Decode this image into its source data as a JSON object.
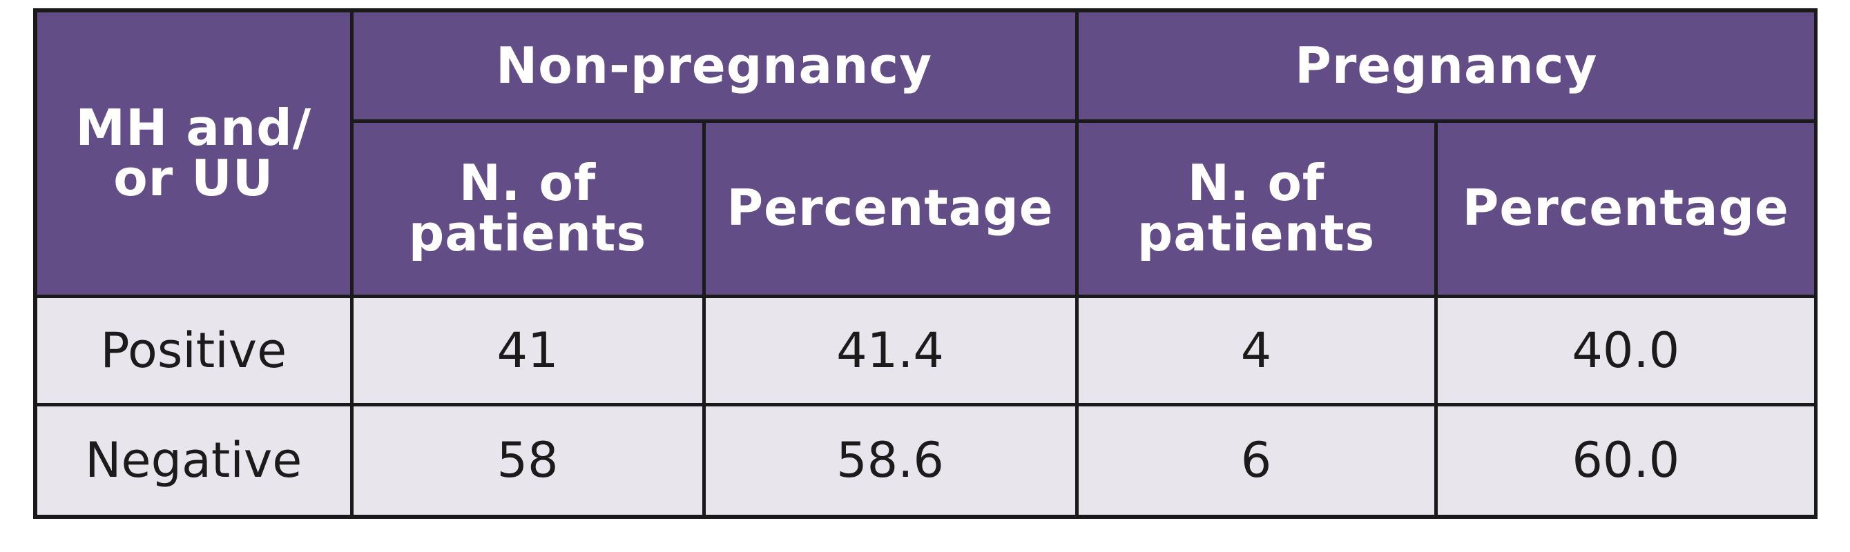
{
  "table": {
    "corner_header": [
      "MH and/",
      "or UU"
    ],
    "groups": [
      {
        "label": "Non-pregnancy"
      },
      {
        "label": "Pregnancy"
      }
    ],
    "subheaders": {
      "count": [
        "N. of",
        "patients"
      ],
      "percentage": "Percentage"
    },
    "rows": [
      {
        "label": "Positive",
        "non_pregnancy_n": "41",
        "non_pregnancy_pct": "41.4",
        "pregnancy_n": "4",
        "pregnancy_pct": "40.0"
      },
      {
        "label": "Negative",
        "non_pregnancy_n": "58",
        "non_pregnancy_pct": "58.6",
        "pregnancy_n": "6",
        "pregnancy_pct": "60.0"
      }
    ]
  },
  "colors": {
    "header_bg": "#634d86",
    "header_text": "#ffffff",
    "body_bg": "#e8e6ec",
    "border": "#1a1a1a"
  }
}
